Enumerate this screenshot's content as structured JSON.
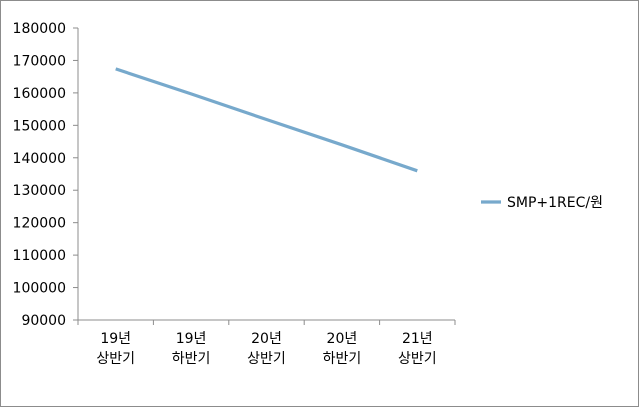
{
  "chart_data": {
    "type": "line",
    "categories": [
      [
        "19년",
        "상반기"
      ],
      [
        "19년",
        "하반기"
      ],
      [
        "20년",
        "상반기"
      ],
      [
        "20년",
        "하반기"
      ],
      [
        "21년",
        "상반기"
      ]
    ],
    "series": [
      {
        "name": "SMP+1REC/원",
        "values": [
          167400,
          159700,
          151800,
          144000,
          136000
        ],
        "color": "#77A9CC"
      }
    ],
    "yticks": [
      "180000",
      "170000",
      "160000",
      "150000",
      "140000",
      "130000",
      "120000",
      "110000",
      "100000",
      "90000"
    ],
    "ylim": [
      90000,
      180000
    ],
    "grid": false,
    "legend": "right",
    "title": "",
    "xlabel": "",
    "ylabel": ""
  }
}
